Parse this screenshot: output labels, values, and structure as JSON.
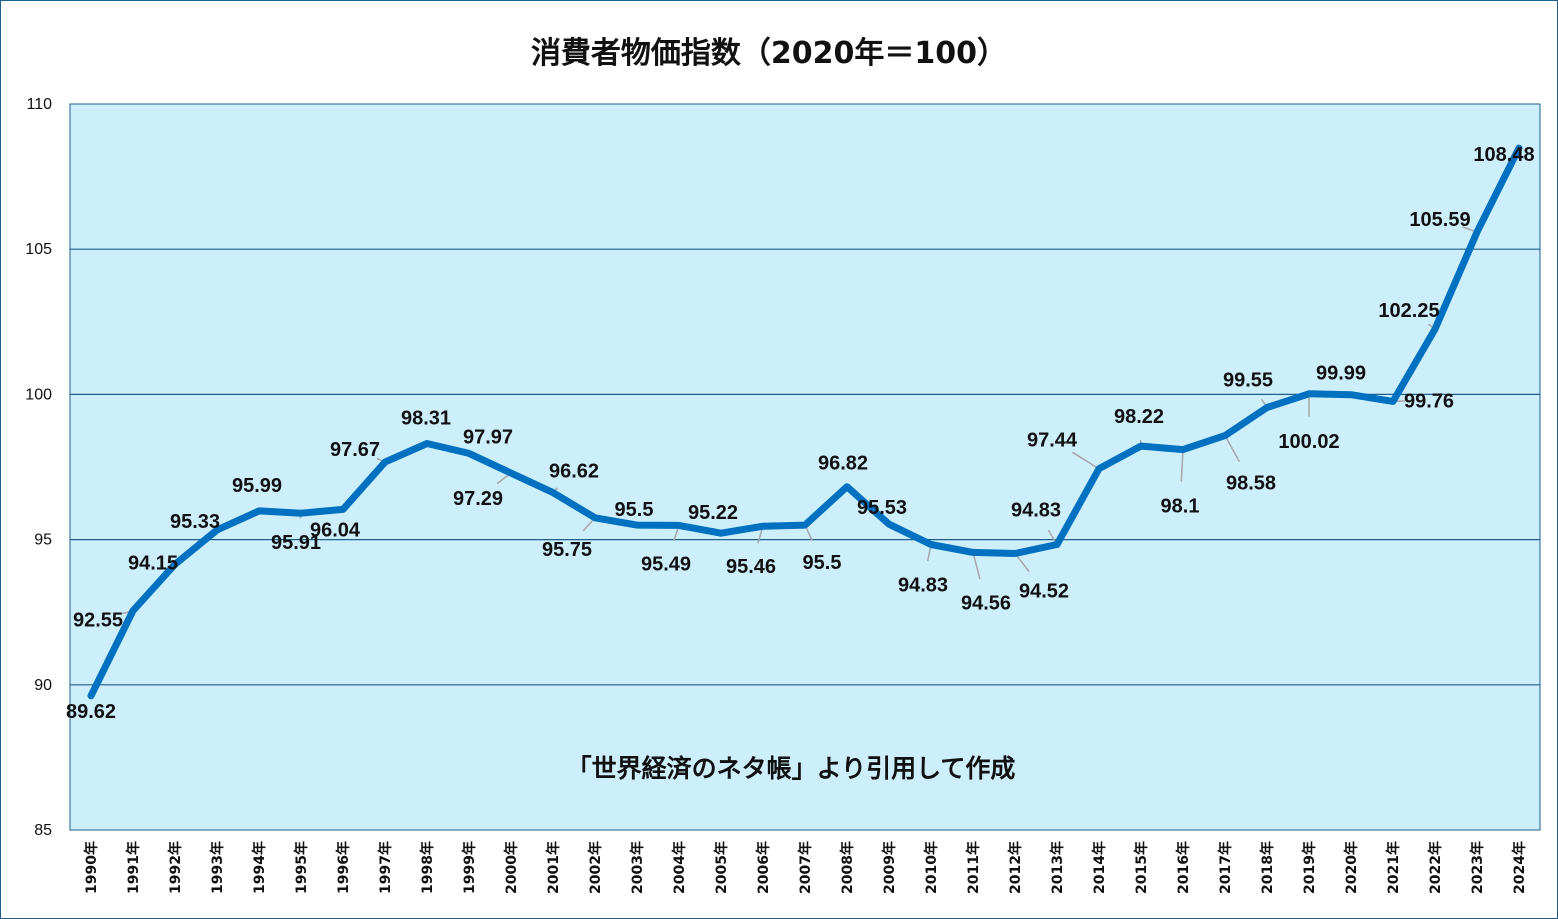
{
  "chart_data": {
    "type": "line",
    "title": "消費者物価指数（2020年＝100）",
    "annotation": "「世界経済のネタ帳」より引用して作成",
    "ylim": [
      85,
      110
    ],
    "yticks": [
      "85",
      "90",
      "95",
      "100",
      "105",
      "110"
    ],
    "grid": true,
    "categories": [
      "1990年",
      "1991年",
      "1992年",
      "1993年",
      "1994年",
      "1995年",
      "1996年",
      "1997年",
      "1998年",
      "1999年",
      "2000年",
      "2001年",
      "2002年",
      "2003年",
      "2004年",
      "2005年",
      "2006年",
      "2007年",
      "2008年",
      "2009年",
      "2010年",
      "2011年",
      "2012年",
      "2013年",
      "2014年",
      "2015年",
      "2016年",
      "2017年",
      "2018年",
      "2019年",
      "2020年",
      "2021年",
      "2022年",
      "2023年",
      "2024年"
    ],
    "series": [
      {
        "values": [
          89.62,
          92.55,
          94.15,
          95.33,
          95.99,
          95.91,
          96.04,
          97.67,
          98.31,
          97.97,
          97.29,
          96.62,
          95.75,
          95.5,
          95.49,
          95.22,
          95.46,
          95.5,
          96.82,
          95.53,
          94.83,
          94.56,
          94.52,
          94.83,
          97.44,
          98.22,
          98.1,
          98.58,
          99.55,
          100.02,
          99.99,
          99.76,
          102.25,
          105.59,
          108.48
        ],
        "labels": [
          "89.62",
          "92.55",
          "94.15",
          "95.33",
          "95.99",
          "95.91",
          "96.04",
          "97.67",
          "98.31",
          "97.97",
          "97.29",
          "96.62",
          "95.75",
          "95.5",
          "95.49",
          "95.22",
          "95.46",
          "95.5",
          "96.82",
          "95.53",
          "94.83",
          "94.56",
          "94.52",
          "94.83",
          "97.44",
          "98.22",
          "98.1",
          "98.58",
          "99.55",
          "100.02",
          "99.99",
          "99.76",
          "102.25",
          "105.59",
          "108.48"
        ]
      }
    ]
  },
  "colors": {
    "plot_bg": "#cdeefb",
    "line": "#0070c0",
    "grid": "#1f5f8b",
    "leader": "#a6a6a6"
  }
}
